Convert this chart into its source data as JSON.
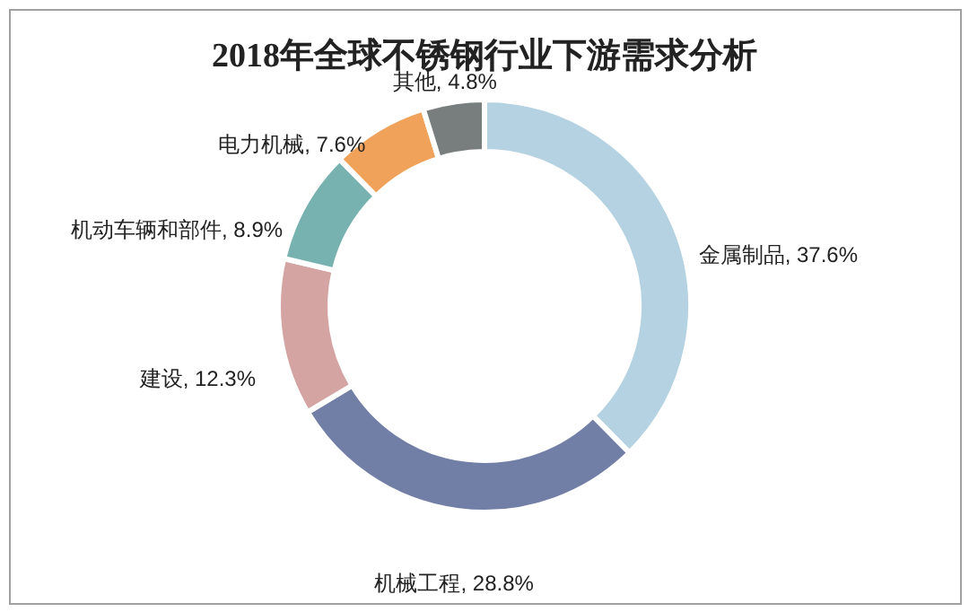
{
  "chart_data": {
    "type": "donut",
    "title": "2018年全球不锈钢行业下游需求分析",
    "categories": [
      "金属制品",
      "机械工程",
      "建设",
      "机动车辆和部件",
      "电力机械",
      "其他"
    ],
    "values": [
      37.6,
      28.8,
      12.3,
      8.9,
      7.6,
      4.8
    ],
    "colors": [
      "#b5d2e2",
      "#717ea6",
      "#d4a4a3",
      "#77b1b0",
      "#f0a25a",
      "#777e7d"
    ],
    "value_labels": [
      "37.6%",
      "28.8%",
      "12.3%",
      "8.9%",
      "7.6%",
      "4.8%"
    ]
  }
}
